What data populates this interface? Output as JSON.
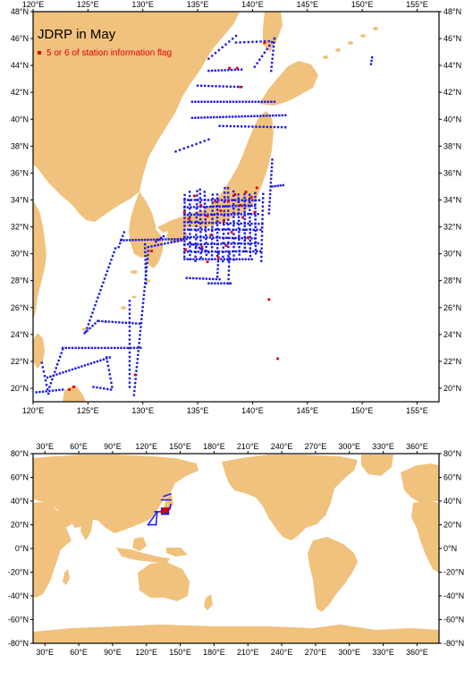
{
  "top_map": {
    "title": "JDRP in May",
    "legend": {
      "label": "5 or 6 of station information flag",
      "color": "#e00000"
    },
    "lon_range": [
      120,
      157
    ],
    "lat_range": [
      19,
      48
    ],
    "x_ticks": [
      "120°E",
      "125°E",
      "130°E",
      "135°E",
      "140°E",
      "145°E",
      "150°E",
      "155°E"
    ],
    "y_ticks": [
      "20°N",
      "22°N",
      "24°N",
      "26°N",
      "28°N",
      "30°N",
      "32°N",
      "34°N",
      "36°N",
      "38°N",
      "40°N",
      "42°N",
      "44°N",
      "46°N",
      "48°N"
    ],
    "land_color": "#f1c27d",
    "station_color": "#1a1ae6",
    "flag_color": "#e00000"
  },
  "bottom_map": {
    "lon_range": [
      20,
      380
    ],
    "lat_range": [
      -80,
      80
    ],
    "x_ticks": [
      "30°E",
      "60°E",
      "90°E",
      "120°E",
      "150°E",
      "180°E",
      "210°E",
      "240°E",
      "270°E",
      "300°E",
      "330°E",
      "360°E"
    ],
    "y_ticks": [
      "80°N",
      "60°N",
      "40°N",
      "20°N",
      "0°N",
      "-20°N",
      "-40°N",
      "-60°N",
      "-80°N"
    ],
    "land_color": "#f1c27d"
  }
}
